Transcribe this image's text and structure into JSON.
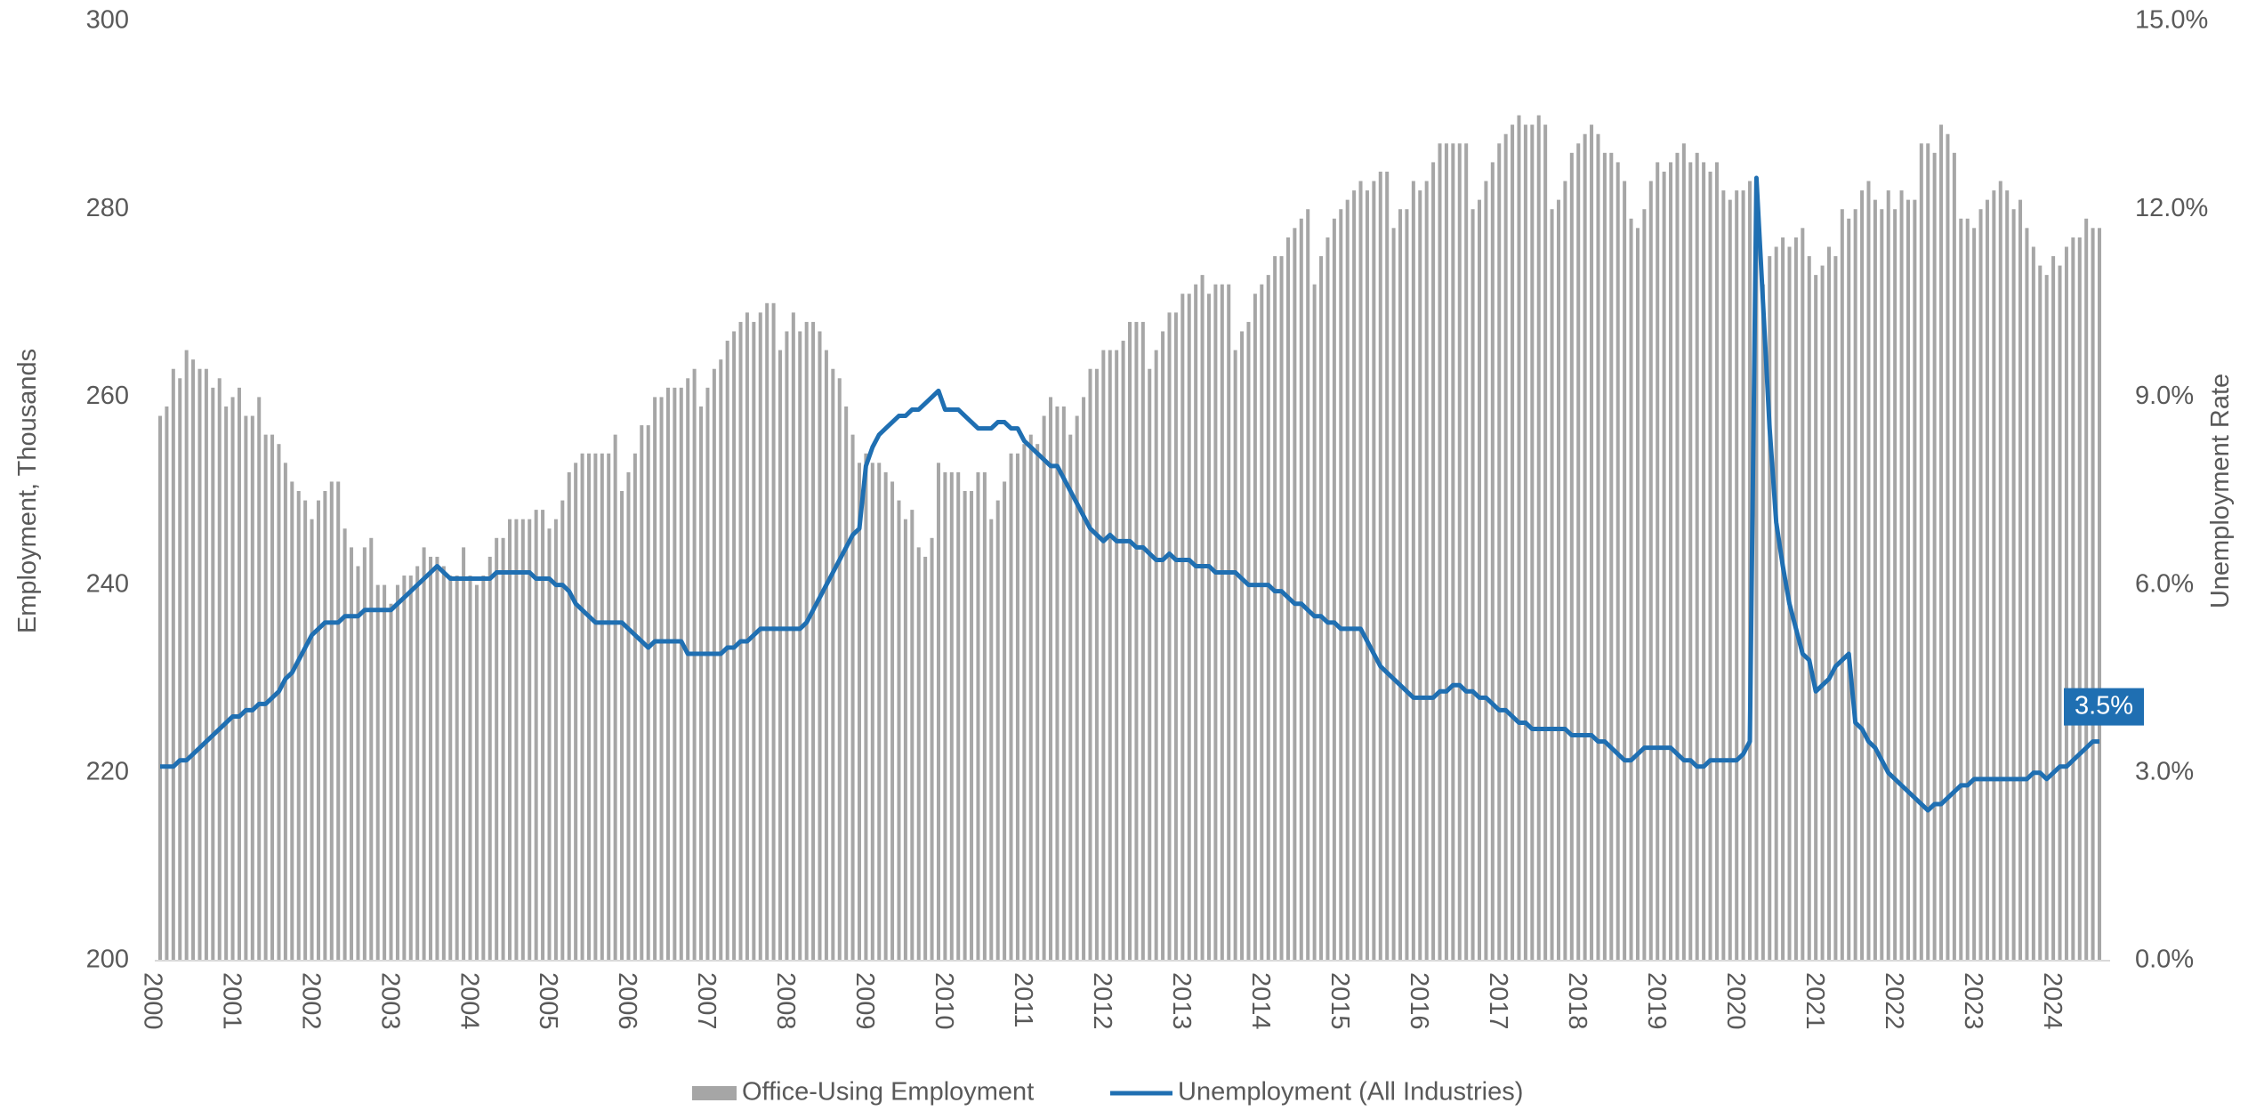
{
  "chart_data": {
    "type": "bar_line",
    "y_label": "Employment, Thousands",
    "y2_label": "Unemployment Rate",
    "ylim": [
      200,
      300
    ],
    "yticks": [
      200,
      220,
      240,
      260,
      280,
      300
    ],
    "y2lim": [
      0,
      15
    ],
    "y2ticks": [
      {
        "value": 0,
        "label": "0.0%"
      },
      {
        "value": 3,
        "label": "3.0%"
      },
      {
        "value": 6,
        "label": "6.0%"
      },
      {
        "value": 9,
        "label": "9.0%"
      },
      {
        "value": 12,
        "label": "12.0%"
      },
      {
        "value": 15,
        "label": "15.0%"
      }
    ],
    "legend": "bottom",
    "categories": [
      "2000",
      null,
      null,
      null,
      null,
      null,
      null,
      null,
      null,
      null,
      null,
      null,
      "2001",
      null,
      null,
      null,
      null,
      null,
      null,
      null,
      null,
      null,
      null,
      null,
      "2002",
      null,
      null,
      null,
      null,
      null,
      null,
      null,
      null,
      null,
      null,
      null,
      "2003",
      null,
      null,
      null,
      null,
      null,
      null,
      null,
      null,
      null,
      null,
      null,
      "2004",
      null,
      null,
      null,
      null,
      null,
      null,
      null,
      null,
      null,
      null,
      null,
      "2005",
      null,
      null,
      null,
      null,
      null,
      null,
      null,
      null,
      null,
      null,
      null,
      "2006",
      null,
      null,
      null,
      null,
      null,
      null,
      null,
      null,
      null,
      null,
      null,
      "2007",
      null,
      null,
      null,
      null,
      null,
      null,
      null,
      null,
      null,
      null,
      null,
      "2008",
      null,
      null,
      null,
      null,
      null,
      null,
      null,
      null,
      null,
      null,
      null,
      "2009",
      null,
      null,
      null,
      null,
      null,
      null,
      null,
      null,
      null,
      null,
      null,
      "2010",
      null,
      null,
      null,
      null,
      null,
      null,
      null,
      null,
      null,
      null,
      null,
      "2011",
      null,
      null,
      null,
      null,
      null,
      null,
      null,
      null,
      null,
      null,
      null,
      "2012",
      null,
      null,
      null,
      null,
      null,
      null,
      null,
      null,
      null,
      null,
      null,
      "2013",
      null,
      null,
      null,
      null,
      null,
      null,
      null,
      null,
      null,
      null,
      null,
      "2014",
      null,
      null,
      null,
      null,
      null,
      null,
      null,
      null,
      null,
      null,
      null,
      "2015",
      null,
      null,
      null,
      null,
      null,
      null,
      null,
      null,
      null,
      null,
      null,
      "2016",
      null,
      null,
      null,
      null,
      null,
      null,
      null,
      null,
      null,
      null,
      null,
      "2017",
      null,
      null,
      null,
      null,
      null,
      null,
      null,
      null,
      null,
      null,
      null,
      "2018",
      null,
      null,
      null,
      null,
      null,
      null,
      null,
      null,
      null,
      null,
      null,
      "2019",
      null,
      null,
      null,
      null,
      null,
      null,
      null,
      null,
      null,
      null,
      null,
      "2020",
      null,
      null,
      null,
      null,
      null,
      null,
      null,
      null,
      null,
      null,
      null,
      "2021",
      null,
      null,
      null,
      null,
      null,
      null,
      null,
      null,
      null,
      null,
      null,
      "2022",
      null,
      null,
      null,
      null,
      null,
      null,
      null,
      null,
      null,
      null,
      null,
      "2023",
      null,
      null,
      null,
      null,
      null,
      null,
      null,
      null,
      null,
      null,
      null,
      "2024",
      null,
      null,
      null,
      null,
      null,
      null
    ],
    "series": [
      {
        "name": "Office-Using Employment",
        "type": "bar",
        "color": "#a6a6a6",
        "values": [
          258,
          259,
          263,
          262,
          265,
          264,
          263,
          263,
          261,
          262,
          259,
          260,
          261,
          258,
          258,
          260,
          256,
          256,
          255,
          253,
          251,
          250,
          249,
          247,
          249,
          250,
          251,
          251,
          246,
          244,
          242,
          244,
          245,
          240,
          240,
          238,
          240,
          241,
          241,
          242,
          244,
          243,
          243,
          242,
          241,
          241,
          244,
          241,
          240,
          241,
          243,
          245,
          245,
          247,
          247,
          247,
          247,
          248,
          248,
          246,
          247,
          249,
          252,
          253,
          254,
          254,
          254,
          254,
          254,
          256,
          250,
          252,
          254,
          257,
          257,
          260,
          260,
          261,
          261,
          261,
          262,
          263,
          259,
          261,
          263,
          264,
          266,
          267,
          268,
          269,
          268,
          269,
          270,
          270,
          265,
          267,
          269,
          267,
          268,
          268,
          267,
          265,
          263,
          262,
          259,
          256,
          253,
          254,
          253,
          253,
          252,
          251,
          249,
          247,
          248,
          244,
          243,
          245,
          253,
          252,
          252,
          252,
          250,
          250,
          252,
          252,
          247,
          249,
          251,
          254,
          254,
          255,
          256,
          255,
          258,
          260,
          259,
          259,
          256,
          258,
          260,
          263,
          263,
          265,
          265,
          265,
          266,
          268,
          268,
          268,
          263,
          265,
          267,
          269,
          269,
          271,
          271,
          272,
          273,
          271,
          272,
          272,
          272,
          265,
          267,
          268,
          271,
          272,
          273,
          275,
          275,
          277,
          278,
          279,
          280,
          272,
          275,
          277,
          279,
          280,
          281,
          282,
          283,
          282,
          283,
          284,
          284,
          278,
          280,
          280,
          283,
          282,
          283,
          285,
          287,
          287,
          287,
          287,
          287,
          280,
          281,
          283,
          285,
          287,
          288,
          289,
          290,
          289,
          289,
          290,
          289,
          280,
          281,
          283,
          286,
          287,
          288,
          289,
          288,
          286,
          286,
          285,
          283,
          279,
          278,
          280,
          283,
          285,
          284,
          285,
          286,
          287,
          285,
          286,
          285,
          284,
          285,
          282,
          281,
          282,
          282,
          283,
          277,
          272,
          275,
          276,
          277,
          276,
          277,
          278,
          275,
          273,
          274,
          276,
          275,
          280,
          279,
          280,
          282,
          283,
          281,
          280,
          282,
          280,
          282,
          281,
          281,
          287,
          287,
          286,
          289,
          288,
          286,
          279,
          279,
          278,
          280,
          281,
          282,
          283,
          282,
          280,
          281,
          278,
          276,
          274,
          273,
          275,
          274,
          276,
          277,
          277,
          279,
          278,
          278
        ]
      },
      {
        "name": "Unemployment (All Industries)",
        "type": "line",
        "axis": "y2",
        "color": "#1f6fb2",
        "values": [
          3.1,
          3.1,
          3.1,
          3.2,
          3.2,
          3.3,
          3.4,
          3.5,
          3.6,
          3.7,
          3.8,
          3.9,
          3.9,
          4.0,
          4.0,
          4.1,
          4.1,
          4.2,
          4.3,
          4.5,
          4.6,
          4.8,
          5.0,
          5.2,
          5.3,
          5.4,
          5.4,
          5.4,
          5.5,
          5.5,
          5.5,
          5.6,
          5.6,
          5.6,
          5.6,
          5.6,
          5.7,
          5.8,
          5.9,
          6.0,
          6.1,
          6.2,
          6.3,
          6.2,
          6.1,
          6.1,
          6.1,
          6.1,
          6.1,
          6.1,
          6.1,
          6.2,
          6.2,
          6.2,
          6.2,
          6.2,
          6.2,
          6.1,
          6.1,
          6.1,
          6.0,
          6.0,
          5.9,
          5.7,
          5.6,
          5.5,
          5.4,
          5.4,
          5.4,
          5.4,
          5.4,
          5.3,
          5.2,
          5.1,
          5.0,
          5.1,
          5.1,
          5.1,
          5.1,
          5.1,
          4.9,
          4.9,
          4.9,
          4.9,
          4.9,
          4.9,
          5.0,
          5.0,
          5.1,
          5.1,
          5.2,
          5.3,
          5.3,
          5.3,
          5.3,
          5.3,
          5.3,
          5.3,
          5.4,
          5.6,
          5.8,
          6.0,
          6.2,
          6.4,
          6.6,
          6.8,
          6.9,
          7.9,
          8.2,
          8.4,
          8.5,
          8.6,
          8.7,
          8.7,
          8.8,
          8.8,
          8.9,
          9.0,
          9.1,
          8.8,
          8.8,
          8.8,
          8.7,
          8.6,
          8.5,
          8.5,
          8.5,
          8.6,
          8.6,
          8.5,
          8.5,
          8.3,
          8.2,
          8.1,
          8.0,
          7.9,
          7.9,
          7.7,
          7.5,
          7.3,
          7.1,
          6.9,
          6.8,
          6.7,
          6.8,
          6.7,
          6.7,
          6.7,
          6.6,
          6.6,
          6.5,
          6.4,
          6.4,
          6.5,
          6.4,
          6.4,
          6.4,
          6.3,
          6.3,
          6.3,
          6.2,
          6.2,
          6.2,
          6.2,
          6.1,
          6.0,
          6.0,
          6.0,
          6.0,
          5.9,
          5.9,
          5.8,
          5.7,
          5.7,
          5.6,
          5.5,
          5.5,
          5.4,
          5.4,
          5.3,
          5.3,
          5.3,
          5.3,
          5.1,
          4.9,
          4.7,
          4.6,
          4.5,
          4.4,
          4.3,
          4.2,
          4.2,
          4.2,
          4.2,
          4.3,
          4.3,
          4.4,
          4.4,
          4.3,
          4.3,
          4.2,
          4.2,
          4.1,
          4.0,
          4.0,
          3.9,
          3.8,
          3.8,
          3.7,
          3.7,
          3.7,
          3.7,
          3.7,
          3.7,
          3.6,
          3.6,
          3.6,
          3.6,
          3.5,
          3.5,
          3.4,
          3.3,
          3.2,
          3.2,
          3.3,
          3.4,
          3.4,
          3.4,
          3.4,
          3.4,
          3.3,
          3.2,
          3.2,
          3.1,
          3.1,
          3.2,
          3.2,
          3.2,
          3.2,
          3.2,
          3.3,
          3.5,
          12.5,
          10.5,
          8.5,
          7.0,
          6.3,
          5.7,
          5.3,
          4.9,
          4.8,
          4.3,
          4.4,
          4.5,
          4.7,
          4.8,
          4.9,
          3.8,
          3.7,
          3.5,
          3.4,
          3.2,
          3.0,
          2.9,
          2.8,
          2.7,
          2.6,
          2.5,
          2.4,
          2.5,
          2.5,
          2.6,
          2.7,
          2.8,
          2.8,
          2.9,
          2.9,
          2.9,
          2.9,
          2.9,
          2.9,
          2.9,
          2.9,
          2.9,
          3.0,
          3.0,
          2.9,
          3.0,
          3.1,
          3.1,
          3.2,
          3.3,
          3.4,
          3.5,
          3.5
        ],
        "value_labels": [
          null,
          null,
          null,
          null,
          null,
          null,
          null,
          null,
          null,
          null,
          null,
          null,
          null,
          null,
          null,
          null,
          null,
          null,
          null,
          null,
          null,
          null,
          null,
          null,
          null,
          null,
          null,
          null,
          null,
          null,
          null,
          null,
          null,
          null,
          null,
          null,
          null,
          null,
          null,
          null,
          null,
          null,
          null,
          null,
          null,
          null,
          null,
          null,
          null,
          null,
          null,
          null,
          null,
          null,
          null,
          null,
          null,
          null,
          null,
          null,
          null,
          null,
          null,
          null,
          null,
          null,
          null,
          null,
          null,
          null,
          null,
          null,
          null,
          null,
          null,
          null,
          null,
          null,
          null,
          null,
          null,
          null,
          null,
          null,
          null,
          null,
          null,
          null,
          null,
          null,
          null,
          null,
          null,
          null,
          null,
          null,
          null,
          null,
          null,
          null,
          null,
          null,
          null,
          null,
          null,
          null,
          null,
          null,
          null,
          null,
          null,
          null,
          null,
          null,
          null,
          null,
          null,
          null,
          null,
          null,
          null,
          null,
          null,
          null,
          null,
          null,
          null,
          null,
          null,
          null,
          null,
          null,
          null,
          null,
          null,
          null,
          null,
          null,
          null,
          null,
          null,
          null,
          null,
          null,
          null,
          null,
          null,
          null,
          null,
          null,
          null,
          null,
          null,
          null,
          null,
          null,
          null,
          null,
          null,
          null,
          null,
          null,
          null,
          null,
          null,
          null,
          null,
          null,
          null,
          null,
          null,
          null,
          null,
          null,
          null,
          null,
          null,
          null,
          null,
          null,
          null,
          null,
          null,
          null,
          null,
          null,
          null,
          null,
          null,
          null,
          null,
          null,
          null,
          null,
          null,
          null,
          null,
          null,
          null,
          null,
          null,
          null,
          null,
          null,
          null,
          null,
          null,
          null,
          null,
          null,
          null,
          null,
          null,
          null,
          null,
          null,
          null,
          null,
          null,
          null,
          null,
          null,
          null,
          null,
          null,
          null,
          null,
          null,
          null,
          null,
          null,
          null,
          null,
          null,
          null,
          null,
          null,
          null,
          null,
          null,
          null,
          null,
          null,
          null,
          null,
          null,
          null,
          null,
          null,
          null,
          null,
          null,
          null,
          null,
          null,
          null,
          null,
          null,
          null,
          null,
          null,
          null,
          null,
          null,
          null,
          null,
          null,
          null,
          null,
          null,
          null,
          null,
          null,
          null,
          null,
          null,
          null,
          null,
          null,
          null,
          null,
          null,
          null,
          null,
          null,
          null,
          null,
          null,
          null,
          null,
          null,
          null,
          null,
          null,
          "3.5%"
        ]
      }
    ]
  }
}
